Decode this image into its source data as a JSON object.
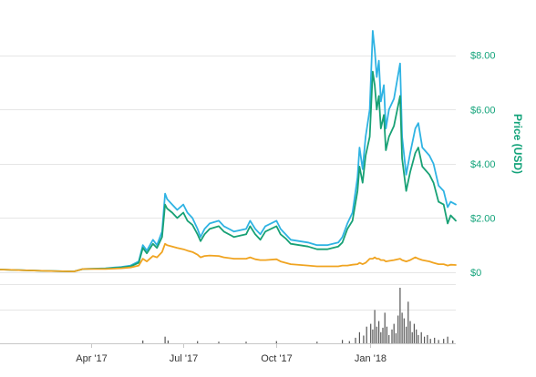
{
  "chart_data": {
    "type": "line",
    "ylabel": "Price (USD)",
    "y_ticks": [
      "$8.00",
      "$6.00",
      "$4.00",
      "$2.00",
      "$0"
    ],
    "y_tick_values": [
      8,
      6,
      4,
      2,
      0
    ],
    "ylim": [
      -0.1,
      9.3
    ],
    "x_ticks": [
      "Apr '17",
      "Jul '17",
      "Oct '17",
      "Jan '18"
    ],
    "x_tick_dates": [
      "2017-04-01",
      "2017-07-01",
      "2017-10-01",
      "2018-01-01"
    ],
    "xlim": [
      "2017-01-01",
      "2018-03-27"
    ],
    "grid": true,
    "series": [
      {
        "color": "#2fb3e3",
        "points": [
          [
            "2017-01-01",
            0.1
          ],
          [
            "2017-02-15",
            0.05
          ],
          [
            "2017-03-15",
            0.03
          ],
          [
            "2017-03-24",
            0.12
          ],
          [
            "2017-04-15",
            0.15
          ],
          [
            "2017-05-01",
            0.2
          ],
          [
            "2017-05-10",
            0.25
          ],
          [
            "2017-05-18",
            0.4
          ],
          [
            "2017-05-22",
            1.0
          ],
          [
            "2017-05-26",
            0.8
          ],
          [
            "2017-06-01",
            1.2
          ],
          [
            "2017-06-05",
            1.0
          ],
          [
            "2017-06-10",
            1.5
          ],
          [
            "2017-06-13",
            2.9
          ],
          [
            "2017-06-15",
            2.7
          ],
          [
            "2017-06-20",
            2.5
          ],
          [
            "2017-06-25",
            2.3
          ],
          [
            "2017-07-01",
            2.5
          ],
          [
            "2017-07-05",
            2.2
          ],
          [
            "2017-07-10",
            2.0
          ],
          [
            "2017-07-15",
            1.6
          ],
          [
            "2017-07-18",
            1.3
          ],
          [
            "2017-07-22",
            1.6
          ],
          [
            "2017-07-27",
            1.8
          ],
          [
            "2017-08-05",
            1.9
          ],
          [
            "2017-08-10",
            1.7
          ],
          [
            "2017-08-20",
            1.5
          ],
          [
            "2017-09-01",
            1.6
          ],
          [
            "2017-09-05",
            1.9
          ],
          [
            "2017-09-10",
            1.6
          ],
          [
            "2017-09-15",
            1.4
          ],
          [
            "2017-09-20",
            1.7
          ],
          [
            "2017-10-01",
            1.9
          ],
          [
            "2017-10-05",
            1.6
          ],
          [
            "2017-10-10",
            1.4
          ],
          [
            "2017-10-15",
            1.2
          ],
          [
            "2017-11-01",
            1.1
          ],
          [
            "2017-11-10",
            1.0
          ],
          [
            "2017-11-20",
            1.0
          ],
          [
            "2017-12-01",
            1.1
          ],
          [
            "2017-12-05",
            1.3
          ],
          [
            "2017-12-10",
            1.8
          ],
          [
            "2017-12-15",
            2.2
          ],
          [
            "2017-12-20",
            3.5
          ],
          [
            "2017-12-22",
            4.6
          ],
          [
            "2017-12-25",
            3.8
          ],
          [
            "2017-12-28",
            5.0
          ],
          [
            "2018-01-01",
            6.0
          ],
          [
            "2018-01-04",
            8.9
          ],
          [
            "2018-01-06",
            8.2
          ],
          [
            "2018-01-08",
            7.2
          ],
          [
            "2018-01-10",
            7.8
          ],
          [
            "2018-01-12",
            6.3
          ],
          [
            "2018-01-15",
            6.9
          ],
          [
            "2018-01-17",
            5.3
          ],
          [
            "2018-01-20",
            6.0
          ],
          [
            "2018-01-25",
            6.4
          ],
          [
            "2018-01-31",
            7.7
          ],
          [
            "2018-02-02",
            5.0
          ],
          [
            "2018-02-06",
            3.6
          ],
          [
            "2018-02-10",
            4.4
          ],
          [
            "2018-02-15",
            5.3
          ],
          [
            "2018-02-18",
            5.5
          ],
          [
            "2018-02-22",
            4.6
          ],
          [
            "2018-03-01",
            4.3
          ],
          [
            "2018-03-05",
            4.0
          ],
          [
            "2018-03-10",
            3.2
          ],
          [
            "2018-03-15",
            3.0
          ],
          [
            "2018-03-19",
            2.4
          ],
          [
            "2018-03-22",
            2.6
          ],
          [
            "2018-03-27",
            2.5
          ]
        ]
      },
      {
        "color": "#18a175",
        "points": [
          [
            "2017-01-01",
            0.1
          ],
          [
            "2017-02-15",
            0.05
          ],
          [
            "2017-03-15",
            0.03
          ],
          [
            "2017-03-24",
            0.12
          ],
          [
            "2017-04-15",
            0.14
          ],
          [
            "2017-05-01",
            0.18
          ],
          [
            "2017-05-10",
            0.22
          ],
          [
            "2017-05-18",
            0.35
          ],
          [
            "2017-05-22",
            0.9
          ],
          [
            "2017-05-26",
            0.7
          ],
          [
            "2017-06-01",
            1.05
          ],
          [
            "2017-06-05",
            0.9
          ],
          [
            "2017-06-10",
            1.3
          ],
          [
            "2017-06-13",
            2.5
          ],
          [
            "2017-06-15",
            2.35
          ],
          [
            "2017-06-20",
            2.2
          ],
          [
            "2017-06-25",
            2.0
          ],
          [
            "2017-07-01",
            2.2
          ],
          [
            "2017-07-05",
            1.9
          ],
          [
            "2017-07-10",
            1.75
          ],
          [
            "2017-07-15",
            1.4
          ],
          [
            "2017-07-18",
            1.15
          ],
          [
            "2017-07-22",
            1.4
          ],
          [
            "2017-07-27",
            1.6
          ],
          [
            "2017-08-05",
            1.7
          ],
          [
            "2017-08-10",
            1.5
          ],
          [
            "2017-08-20",
            1.3
          ],
          [
            "2017-09-01",
            1.4
          ],
          [
            "2017-09-05",
            1.7
          ],
          [
            "2017-09-10",
            1.4
          ],
          [
            "2017-09-15",
            1.2
          ],
          [
            "2017-09-20",
            1.5
          ],
          [
            "2017-10-01",
            1.7
          ],
          [
            "2017-10-05",
            1.4
          ],
          [
            "2017-10-10",
            1.25
          ],
          [
            "2017-10-15",
            1.05
          ],
          [
            "2017-11-01",
            0.95
          ],
          [
            "2017-11-10",
            0.85
          ],
          [
            "2017-11-20",
            0.85
          ],
          [
            "2017-12-01",
            0.95
          ],
          [
            "2017-12-05",
            1.1
          ],
          [
            "2017-12-10",
            1.6
          ],
          [
            "2017-12-15",
            1.9
          ],
          [
            "2017-12-20",
            3.0
          ],
          [
            "2017-12-22",
            3.9
          ],
          [
            "2017-12-25",
            3.3
          ],
          [
            "2017-12-28",
            4.3
          ],
          [
            "2018-01-01",
            5.0
          ],
          [
            "2018-01-04",
            7.4
          ],
          [
            "2018-01-06",
            6.9
          ],
          [
            "2018-01-08",
            6.0
          ],
          [
            "2018-01-10",
            6.5
          ],
          [
            "2018-01-12",
            5.3
          ],
          [
            "2018-01-15",
            5.8
          ],
          [
            "2018-01-17",
            4.5
          ],
          [
            "2018-01-20",
            5.0
          ],
          [
            "2018-01-25",
            5.4
          ],
          [
            "2018-01-31",
            6.5
          ],
          [
            "2018-02-02",
            4.2
          ],
          [
            "2018-02-06",
            3.0
          ],
          [
            "2018-02-10",
            3.7
          ],
          [
            "2018-02-15",
            4.4
          ],
          [
            "2018-02-18",
            4.6
          ],
          [
            "2018-02-22",
            3.9
          ],
          [
            "2018-03-01",
            3.6
          ],
          [
            "2018-03-05",
            3.3
          ],
          [
            "2018-03-10",
            2.6
          ],
          [
            "2018-03-15",
            2.5
          ],
          [
            "2018-03-19",
            1.8
          ],
          [
            "2018-03-22",
            2.1
          ],
          [
            "2018-03-27",
            1.9
          ]
        ]
      },
      {
        "color": "#f0a421",
        "points": [
          [
            "2017-01-01",
            0.1
          ],
          [
            "2017-02-15",
            0.05
          ],
          [
            "2017-03-15",
            0.03
          ],
          [
            "2017-03-24",
            0.12
          ],
          [
            "2017-04-15",
            0.12
          ],
          [
            "2017-05-01",
            0.15
          ],
          [
            "2017-05-10",
            0.18
          ],
          [
            "2017-05-18",
            0.25
          ],
          [
            "2017-05-22",
            0.5
          ],
          [
            "2017-05-26",
            0.4
          ],
          [
            "2017-06-01",
            0.6
          ],
          [
            "2017-06-05",
            0.55
          ],
          [
            "2017-06-10",
            0.75
          ],
          [
            "2017-06-13",
            1.05
          ],
          [
            "2017-06-15",
            1.0
          ],
          [
            "2017-06-20",
            0.95
          ],
          [
            "2017-06-25",
            0.9
          ],
          [
            "2017-07-01",
            0.85
          ],
          [
            "2017-07-05",
            0.8
          ],
          [
            "2017-07-10",
            0.75
          ],
          [
            "2017-07-15",
            0.65
          ],
          [
            "2017-07-18",
            0.55
          ],
          [
            "2017-07-22",
            0.6
          ],
          [
            "2017-07-27",
            0.62
          ],
          [
            "2017-08-05",
            0.6
          ],
          [
            "2017-08-10",
            0.55
          ],
          [
            "2017-08-20",
            0.5
          ],
          [
            "2017-09-01",
            0.5
          ],
          [
            "2017-09-05",
            0.55
          ],
          [
            "2017-09-10",
            0.48
          ],
          [
            "2017-09-15",
            0.45
          ],
          [
            "2017-09-20",
            0.45
          ],
          [
            "2017-10-01",
            0.48
          ],
          [
            "2017-10-05",
            0.4
          ],
          [
            "2017-10-10",
            0.35
          ],
          [
            "2017-10-15",
            0.3
          ],
          [
            "2017-11-01",
            0.25
          ],
          [
            "2017-11-10",
            0.22
          ],
          [
            "2017-11-20",
            0.22
          ],
          [
            "2017-12-01",
            0.22
          ],
          [
            "2017-12-05",
            0.25
          ],
          [
            "2017-12-10",
            0.25
          ],
          [
            "2017-12-15",
            0.28
          ],
          [
            "2017-12-20",
            0.3
          ],
          [
            "2017-12-22",
            0.35
          ],
          [
            "2017-12-25",
            0.3
          ],
          [
            "2017-12-28",
            0.35
          ],
          [
            "2018-01-01",
            0.5
          ],
          [
            "2018-01-04",
            0.5
          ],
          [
            "2018-01-06",
            0.55
          ],
          [
            "2018-01-08",
            0.5
          ],
          [
            "2018-01-10",
            0.5
          ],
          [
            "2018-01-12",
            0.45
          ],
          [
            "2018-01-15",
            0.45
          ],
          [
            "2018-01-17",
            0.4
          ],
          [
            "2018-01-20",
            0.42
          ],
          [
            "2018-01-25",
            0.45
          ],
          [
            "2018-01-31",
            0.5
          ],
          [
            "2018-02-02",
            0.45
          ],
          [
            "2018-02-06",
            0.4
          ],
          [
            "2018-02-10",
            0.45
          ],
          [
            "2018-02-15",
            0.55
          ],
          [
            "2018-02-18",
            0.5
          ],
          [
            "2018-02-22",
            0.45
          ],
          [
            "2018-03-01",
            0.4
          ],
          [
            "2018-03-05",
            0.35
          ],
          [
            "2018-03-10",
            0.3
          ],
          [
            "2018-03-15",
            0.3
          ],
          [
            "2018-03-19",
            0.25
          ],
          [
            "2018-03-22",
            0.28
          ],
          [
            "2018-03-27",
            0.27
          ]
        ]
      }
    ],
    "volume": {
      "color": "#555555",
      "bars": [
        [
          "2017-05-22",
          0.05
        ],
        [
          "2017-06-13",
          0.12
        ],
        [
          "2017-06-16",
          0.05
        ],
        [
          "2017-07-15",
          0.04
        ],
        [
          "2017-08-05",
          0.03
        ],
        [
          "2017-09-01",
          0.03
        ],
        [
          "2017-10-01",
          0.04
        ],
        [
          "2017-11-10",
          0.03
        ],
        [
          "2017-12-05",
          0.06
        ],
        [
          "2017-12-12",
          0.04
        ],
        [
          "2017-12-18",
          0.1
        ],
        [
          "2017-12-22",
          0.2
        ],
        [
          "2017-12-26",
          0.14
        ],
        [
          "2017-12-29",
          0.3
        ],
        [
          "2018-01-02",
          0.35
        ],
        [
          "2018-01-04",
          0.25
        ],
        [
          "2018-01-06",
          0.6
        ],
        [
          "2018-01-08",
          0.3
        ],
        [
          "2018-01-10",
          0.4
        ],
        [
          "2018-01-12",
          0.2
        ],
        [
          "2018-01-14",
          0.28
        ],
        [
          "2018-01-16",
          0.55
        ],
        [
          "2018-01-18",
          0.3
        ],
        [
          "2018-01-20",
          0.15
        ],
        [
          "2018-01-23",
          0.25
        ],
        [
          "2018-01-25",
          0.35
        ],
        [
          "2018-01-27",
          0.18
        ],
        [
          "2018-01-29",
          0.5
        ],
        [
          "2018-01-31",
          1.0
        ],
        [
          "2018-02-02",
          0.55
        ],
        [
          "2018-02-04",
          0.45
        ],
        [
          "2018-02-06",
          0.3
        ],
        [
          "2018-02-08",
          0.75
        ],
        [
          "2018-02-10",
          0.4
        ],
        [
          "2018-02-12",
          0.2
        ],
        [
          "2018-02-14",
          0.35
        ],
        [
          "2018-02-16",
          0.25
        ],
        [
          "2018-02-18",
          0.15
        ],
        [
          "2018-02-21",
          0.2
        ],
        [
          "2018-02-24",
          0.12
        ],
        [
          "2018-02-27",
          0.15
        ],
        [
          "2018-03-02",
          0.08
        ],
        [
          "2018-03-06",
          0.1
        ],
        [
          "2018-03-10",
          0.06
        ],
        [
          "2018-03-15",
          0.08
        ],
        [
          "2018-03-19",
          0.12
        ],
        [
          "2018-03-24",
          0.05
        ]
      ]
    }
  }
}
